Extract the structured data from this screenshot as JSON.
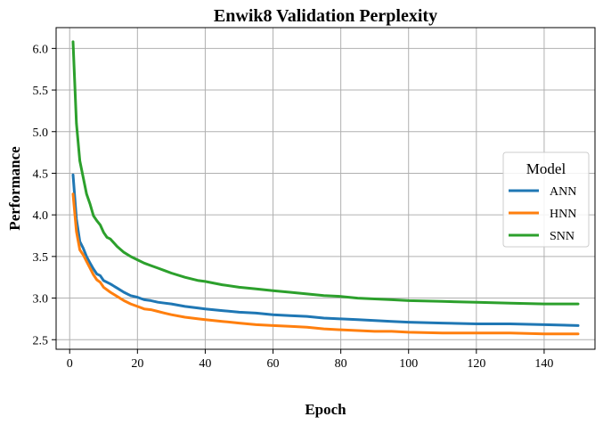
{
  "chart_data": {
    "type": "line",
    "title": "Enwik8 Validation Perplexity",
    "xlabel": "Epoch",
    "ylabel": "Performance",
    "xlim": [
      -4,
      155
    ],
    "ylim": [
      2.385,
      6.25
    ],
    "xticks": [
      0,
      20,
      40,
      60,
      80,
      100,
      120,
      140
    ],
    "yticks": [
      2.5,
      3.0,
      3.5,
      4.0,
      4.5,
      5.0,
      5.5,
      6.0
    ],
    "xtick_labels": [
      "0",
      "20",
      "40",
      "60",
      "80",
      "100",
      "120",
      "140"
    ],
    "ytick_labels": [
      "2.5",
      "3.0",
      "3.5",
      "4.0",
      "4.5",
      "5.0",
      "5.5",
      "6.0"
    ],
    "grid": true,
    "legend": {
      "title": "Model",
      "position": "center-right"
    },
    "series": [
      {
        "name": "ANN",
        "color": "#1f77b4",
        "x": [
          1,
          2,
          3,
          4,
          5,
          6,
          7,
          8,
          9,
          10,
          12,
          14,
          16,
          18,
          20,
          22,
          24,
          26,
          28,
          30,
          34,
          38,
          40,
          45,
          50,
          55,
          60,
          65,
          70,
          75,
          80,
          85,
          90,
          95,
          100,
          110,
          120,
          130,
          140,
          150
        ],
        "y": [
          4.48,
          3.95,
          3.68,
          3.6,
          3.5,
          3.42,
          3.35,
          3.29,
          3.27,
          3.21,
          3.17,
          3.12,
          3.07,
          3.03,
          3.01,
          2.98,
          2.97,
          2.95,
          2.94,
          2.93,
          2.9,
          2.88,
          2.87,
          2.85,
          2.83,
          2.82,
          2.8,
          2.79,
          2.78,
          2.76,
          2.75,
          2.74,
          2.73,
          2.72,
          2.71,
          2.7,
          2.69,
          2.69,
          2.68,
          2.67
        ]
      },
      {
        "name": "HNN",
        "color": "#ff7f0e",
        "x": [
          1,
          2,
          3,
          4,
          5,
          6,
          7,
          8,
          9,
          10,
          12,
          14,
          16,
          18,
          20,
          22,
          24,
          26,
          28,
          30,
          34,
          38,
          40,
          45,
          50,
          55,
          60,
          65,
          70,
          75,
          80,
          85,
          90,
          95,
          100,
          110,
          120,
          130,
          140,
          150
        ],
        "y": [
          4.25,
          3.8,
          3.58,
          3.52,
          3.44,
          3.36,
          3.28,
          3.22,
          3.19,
          3.13,
          3.07,
          3.02,
          2.97,
          2.93,
          2.9,
          2.87,
          2.86,
          2.84,
          2.82,
          2.8,
          2.77,
          2.75,
          2.74,
          2.72,
          2.7,
          2.68,
          2.67,
          2.66,
          2.65,
          2.63,
          2.62,
          2.61,
          2.6,
          2.6,
          2.59,
          2.58,
          2.58,
          2.58,
          2.57,
          2.57
        ]
      },
      {
        "name": "SNN",
        "color": "#2ca02c",
        "x": [
          1,
          2,
          3,
          4,
          5,
          6,
          7,
          8,
          9,
          10,
          11,
          12,
          14,
          16,
          18,
          20,
          22,
          24,
          26,
          28,
          30,
          34,
          38,
          40,
          45,
          50,
          55,
          60,
          65,
          70,
          75,
          80,
          85,
          90,
          95,
          100,
          110,
          120,
          130,
          140,
          150
        ],
        "y": [
          6.08,
          5.1,
          4.65,
          4.45,
          4.25,
          4.13,
          3.99,
          3.93,
          3.88,
          3.79,
          3.73,
          3.71,
          3.62,
          3.55,
          3.5,
          3.46,
          3.42,
          3.39,
          3.36,
          3.33,
          3.3,
          3.25,
          3.21,
          3.2,
          3.16,
          3.13,
          3.11,
          3.09,
          3.07,
          3.05,
          3.03,
          3.02,
          3.0,
          2.99,
          2.98,
          2.97,
          2.96,
          2.95,
          2.94,
          2.93,
          2.93
        ]
      }
    ]
  }
}
